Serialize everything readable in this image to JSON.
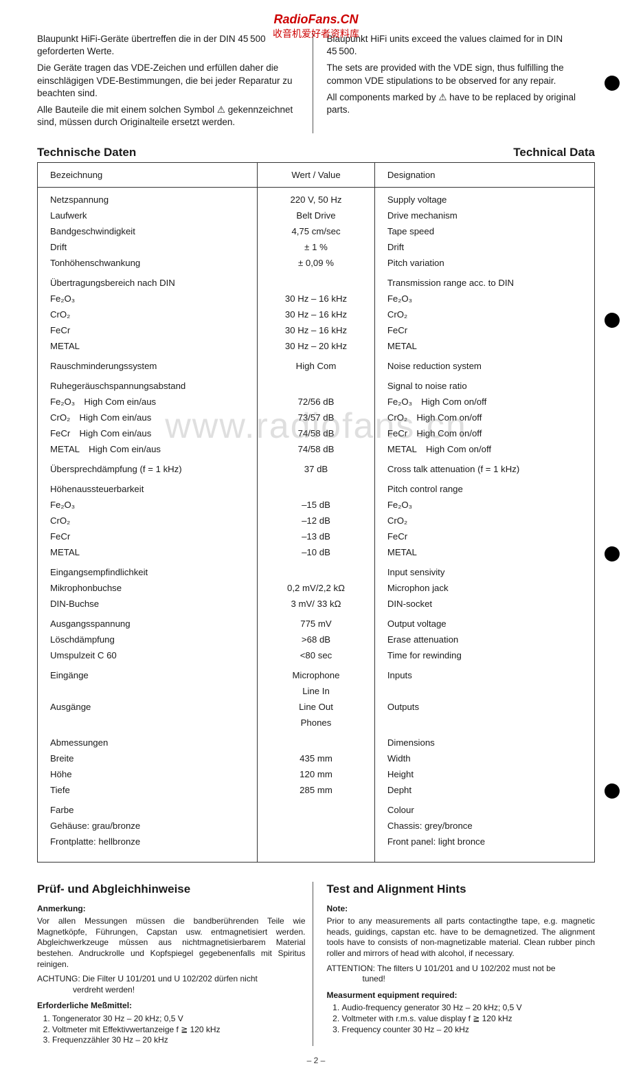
{
  "watermark": {
    "line1": "RadioFans.CN",
    "line2": "收音机爱好者资料库",
    "mid": "www.radiofans.cn"
  },
  "intro": {
    "de": {
      "p1": "Blaupunkt HiFi-Geräte übertreffen die in der DIN 45 500 geforderten Werte.",
      "p2": "Die Geräte tragen das VDE-Zeichen und erfüllen daher die einschlägigen VDE-Bestimmungen, die bei jeder Reparatur zu beachten sind.",
      "p3": "Alle Bauteile die mit einem solchen Symbol ⚠ gekennzeichnet sind, müssen durch Originalteile ersetzt werden."
    },
    "en": {
      "p1": "Blaupunkt HiFi units exceed the values claimed for in DIN 45 500.",
      "p2": "The sets are provided with the VDE sign, thus fulfilling the common VDE stipulations to be observed for any repair.",
      "p3": "All components marked by ⚠ have to be replaced by original parts."
    }
  },
  "section": {
    "de": "Technische Daten",
    "en": "Technical Data"
  },
  "table": {
    "headers": {
      "de": "Bezeichnung",
      "val": "Wert / Value",
      "en": "Designation"
    },
    "rows": [
      {
        "de": "Netzspannung",
        "val": "220 V, 50 Hz",
        "en": "Supply voltage",
        "spacer": true
      },
      {
        "de": "Laufwerk",
        "val": "Belt Drive",
        "en": "Drive mechanism"
      },
      {
        "de": "Bandgeschwindigkeit",
        "val": "4,75 cm/sec",
        "en": "Tape speed"
      },
      {
        "de": "Drift",
        "val": "± 1 %",
        "en": "Drift"
      },
      {
        "de": "Tonhöhenschwankung",
        "val": "± 0,09 %",
        "en": "Pitch variation"
      },
      {
        "de": "Übertragungsbereich nach DIN",
        "val": "",
        "en": "Transmission range acc. to DIN",
        "spacer": true
      },
      {
        "de": "Fe₂O₃",
        "val": "30 Hz – 16 kHz",
        "en": "Fe₂O₃"
      },
      {
        "de": "CrO₂",
        "val": "30 Hz – 16 kHz",
        "en": "CrO₂"
      },
      {
        "de": "FeCr",
        "val": "30 Hz – 16 kHz",
        "en": "FeCr"
      },
      {
        "de": "METAL",
        "val": "30 Hz – 20 kHz",
        "en": "METAL"
      },
      {
        "de": "Rauschminderungssystem",
        "val": "High Com",
        "en": "Noise reduction system",
        "spacer": true
      },
      {
        "de": "Ruhegeräuschspannungsabstand",
        "val": "",
        "en": "Signal to noise ratio",
        "spacer": true
      },
      {
        "de": "Fe₂O₃ High Com ein/aus",
        "val": "72/56 dB",
        "en": "Fe₂O₃ High Com on/off"
      },
      {
        "de": "CrO₂ High Com ein/aus",
        "val": "73/57 dB",
        "en": "CrO₂ High Com on/off"
      },
      {
        "de": "FeCr High Com ein/aus",
        "val": "74/58 dB",
        "en": "FeCr High Com on/off"
      },
      {
        "de": "METAL High Com ein/aus",
        "val": "74/58 dB",
        "en": "METAL High Com on/off"
      },
      {
        "de": "Übersprechdämpfung (f = 1 kHz)",
        "val": "37 dB",
        "en": "Cross talk attenuation (f = 1 kHz)",
        "spacer": true
      },
      {
        "de": "Höhenaussteuerbarkeit",
        "val": "",
        "en": "Pitch control range",
        "spacer": true
      },
      {
        "de": "Fe₂O₃",
        "val": "–15 dB",
        "en": "Fe₂O₃"
      },
      {
        "de": "CrO₂",
        "val": "–12 dB",
        "en": "CrO₂"
      },
      {
        "de": "FeCr",
        "val": "–13 dB",
        "en": "FeCr"
      },
      {
        "de": "METAL",
        "val": "–10 dB",
        "en": "METAL"
      },
      {
        "de": "Eingangsempfindlichkeit",
        "val": "",
        "en": "Input sensivity",
        "spacer": true
      },
      {
        "de": "Mikrophonbuchse",
        "val": "0,2 mV/2,2 kΩ",
        "en": "Microphon jack"
      },
      {
        "de": "DIN-Buchse",
        "val": "3 mV/ 33 kΩ",
        "en": "DIN-socket"
      },
      {
        "de": "Ausgangsspannung",
        "val": "775 mV",
        "en": "Output voltage",
        "spacer": true
      },
      {
        "de": "Löschdämpfung",
        "val": ">68 dB",
        "en": "Erase attenuation"
      },
      {
        "de": "Umspulzeit C 60",
        "val": "<80 sec",
        "en": "Time for rewinding"
      },
      {
        "de": "Eingänge",
        "val": "Microphone",
        "en": "Inputs",
        "spacer": true
      },
      {
        "de": "",
        "val": "Line In",
        "en": ""
      },
      {
        "de": "Ausgänge",
        "val": "Line Out",
        "en": "Outputs"
      },
      {
        "de": "",
        "val": "Phones",
        "en": ""
      },
      {
        "de": "Abmessungen",
        "val": "",
        "en": "Dimensions",
        "spacer": true
      },
      {
        "de": "Breite",
        "val": "435 mm",
        "en": "Width"
      },
      {
        "de": "Höhe",
        "val": "120 mm",
        "en": "Height"
      },
      {
        "de": "Tiefe",
        "val": "285 mm",
        "en": "Depht"
      },
      {
        "de": "Farbe",
        "val": "",
        "en": "Colour",
        "spacer": true
      },
      {
        "de": "Gehäuse: grau/bronze",
        "val": "",
        "en": "Chassis: grey/bronce"
      },
      {
        "de": "Frontplatte: hellbronze",
        "val": "",
        "en": "Front panel: light bronce",
        "pad": true
      }
    ]
  },
  "lower": {
    "de": {
      "h": "Prüf- und Abgleichhinweise",
      "noteLabel": "Anmerkung:",
      "note": "Vor allen Messungen müssen die bandberührenden Teile wie Magnetköpfe, Führungen, Capstan usw. entmagnetisiert werden. Abgleichwerkzeuge müssen aus nichtmagnetisierbarem Material bestehen. Andruckrolle und Kopfspiegel gegebenenfalls mit Spiritus reinigen.",
      "attn": "ACHTUNG: Die Filter U 101/201 und U 102/202 dürfen nicht",
      "attn2": "verdreht werden!",
      "eqLabel": "Erforderliche Meßmittel:",
      "eq": [
        "Tongenerator 30 Hz – 20 kHz; 0,5 V",
        "Voltmeter mit Effektivwertanzeige f ≧ 120 kHz",
        "Frequenzzähler 30 Hz – 20 kHz"
      ]
    },
    "en": {
      "h": "Test and Alignment Hints",
      "noteLabel": "Note:",
      "note": "Prior to any measurements all parts contactingthe tape, e.g. magnetic heads, guidings, capstan etc. have to be demagnetized. The alignment tools have to consists of non-magnetizable material. Clean rubber pinch roller and mirrors of head with alcohol, if necessary.",
      "attn": "ATTENTION: The filters U 101/201 and U 102/202 must not be",
      "attn2": "tuned!",
      "eqLabel": "Measurment equipment required:",
      "eq": [
        "Audio-frequency generator 30 Hz – 20 kHz; 0,5 V",
        "Voltmeter with r.m.s. value display f ≧ 120 kHz",
        "Frequency counter 30 Hz – 20 kHz"
      ]
    }
  },
  "pagenum": "– 2 –"
}
